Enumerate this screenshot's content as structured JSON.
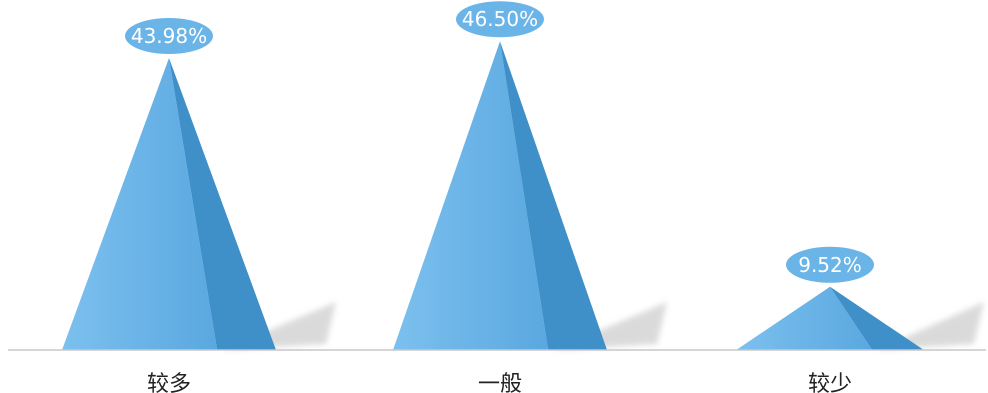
{
  "chart_data": {
    "type": "bar",
    "subtype": "pyramid",
    "categories": [
      "较多",
      "一般",
      "较少"
    ],
    "values": [
      43.98,
      46.5,
      9.52
    ],
    "value_labels": [
      "43.98%",
      "46.50%",
      "9.52%"
    ],
    "unit": "%",
    "ylim": [
      0,
      50
    ],
    "grid": false,
    "legend": "none",
    "colors": {
      "pyramid_face": "#6ab4e8",
      "pyramid_shade": "#3f8fc8",
      "label_bubble": "#6ab4e8",
      "label_text": "#ffffff",
      "axis_line": "#c8c8c8",
      "category_text": "#222222"
    }
  }
}
